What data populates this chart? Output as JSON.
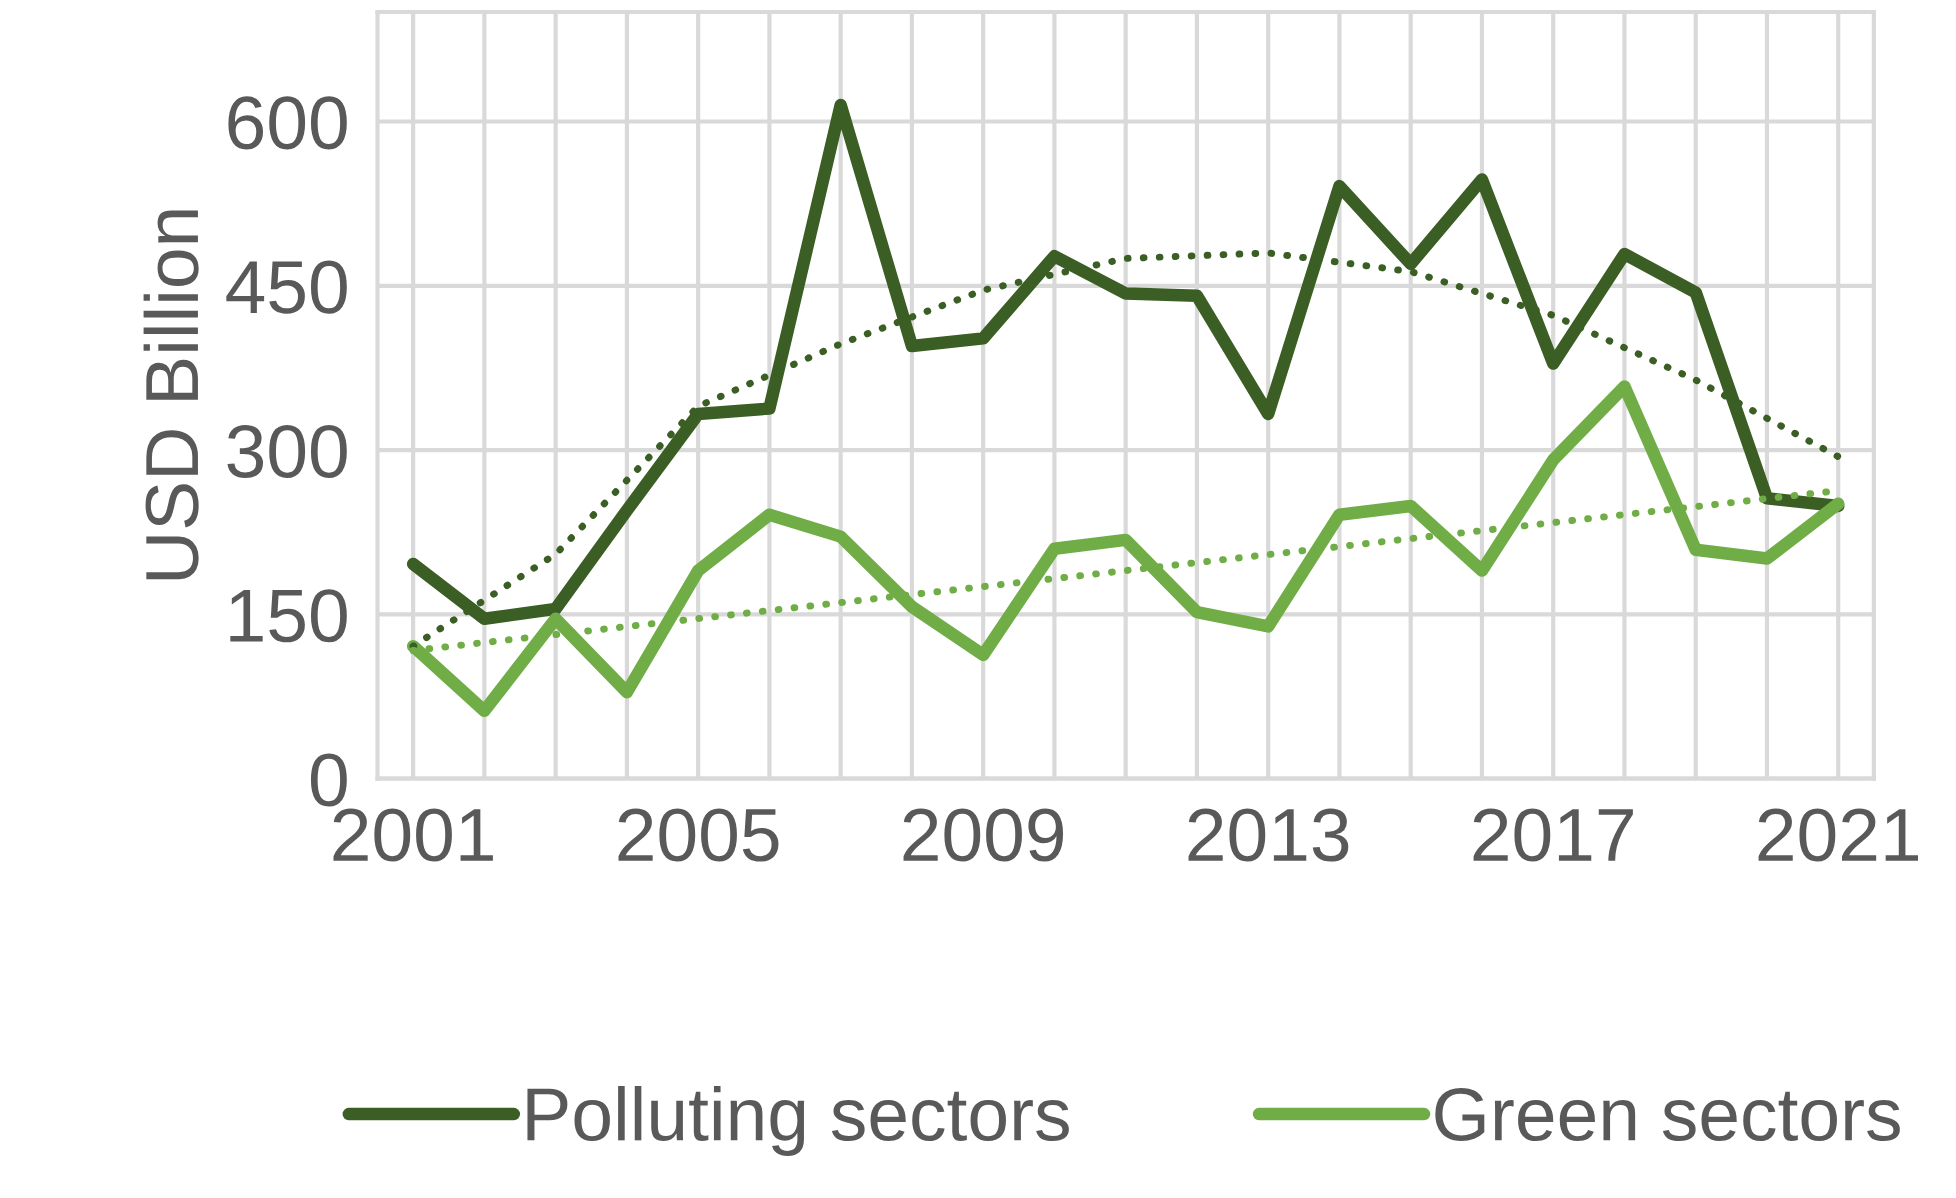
{
  "chart_data": {
    "type": "line",
    "ylabel": "USD Billion",
    "x": [
      2001,
      2002,
      2003,
      2004,
      2005,
      2006,
      2007,
      2008,
      2009,
      2010,
      2011,
      2012,
      2013,
      2014,
      2015,
      2016,
      2017,
      2018,
      2019,
      2020,
      2021
    ],
    "series": [
      {
        "name": "Polluting sectors",
        "color": "#3b5e24",
        "values": [
          196,
          146,
          155,
          245,
          333,
          338,
          615,
          395,
          402,
          477,
          443,
          441,
          333,
          541,
          470,
          547,
          379,
          479,
          444,
          256,
          249
        ]
      },
      {
        "name": "Green sectors",
        "color": "#70ad47",
        "values": [
          121,
          62,
          146,
          79,
          190,
          241,
          221,
          157,
          113,
          210,
          218,
          152,
          139,
          241,
          249,
          190,
          291,
          358,
          209,
          201,
          251
        ]
      },
      {
        "type": "line",
        "color": "#3b5e24",
        "line_style": "dotted",
        "x": [
          2001,
          2003,
          2005,
          2007,
          2009,
          2011,
          2013,
          2015,
          2017,
          2019,
          2021
        ],
        "values": [
          121,
          205,
          340,
          397,
          446,
          475,
          480,
          463,
          423,
          364,
          294
        ]
      },
      {
        "type": "line",
        "color": "#70ad47",
        "line_style": "dotted",
        "x": [
          2001,
          2021
        ],
        "values": [
          117,
          263
        ]
      }
    ],
    "xlim": [
      2000.5,
      2021.5
    ],
    "xticks": [
      2001,
      {
        "value": 2002,
        "label": null
      },
      {
        "value": 2003,
        "label": null
      },
      {
        "value": 2004,
        "label": null
      },
      2005,
      {
        "value": 2006,
        "label": null
      },
      {
        "value": 2007,
        "label": null
      },
      {
        "value": 2008,
        "label": null
      },
      2009,
      {
        "value": 2010,
        "label": null
      },
      {
        "value": 2011,
        "label": null
      },
      {
        "value": 2012,
        "label": null
      },
      2013,
      {
        "value": 2014,
        "label": null
      },
      {
        "value": 2015,
        "label": null
      },
      {
        "value": 2016,
        "label": null
      },
      2017,
      {
        "value": 2018,
        "label": null
      },
      {
        "value": 2019,
        "label": null
      },
      {
        "value": 2020,
        "label": null
      },
      2021
    ],
    "ylim": [
      0,
      700
    ],
    "yticks": [
      0,
      150,
      300,
      450,
      600
    ],
    "grid": true,
    "legend": "bottom",
    "line_style": "solid",
    "marker": "none"
  }
}
